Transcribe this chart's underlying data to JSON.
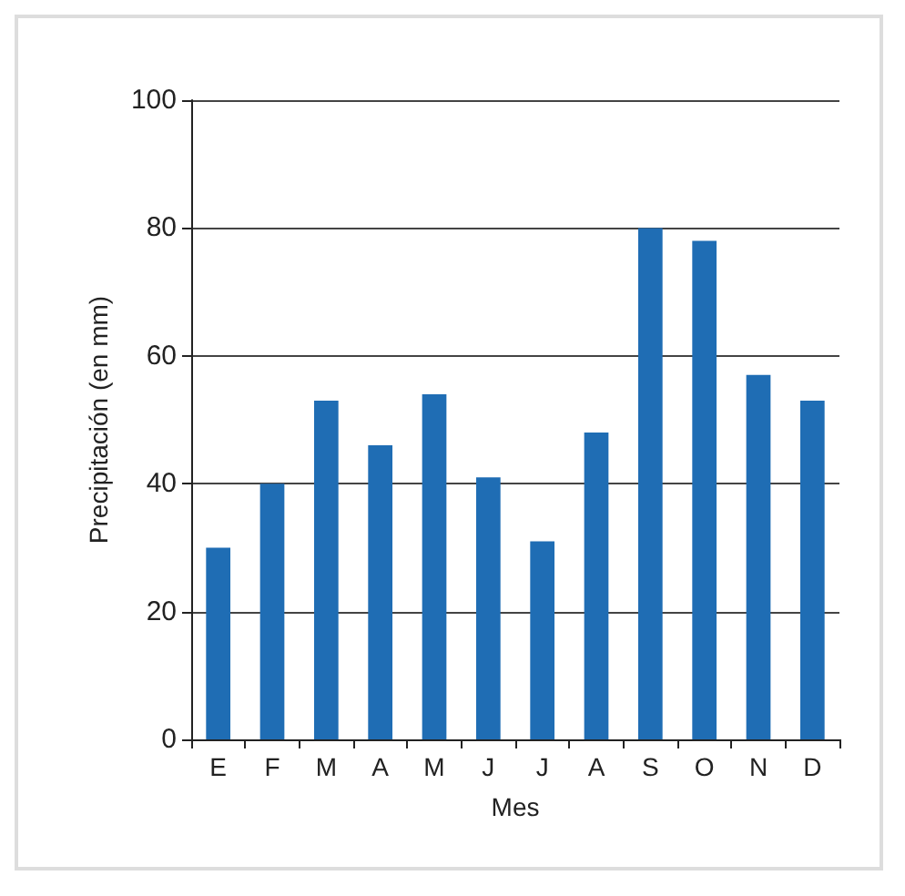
{
  "chart_data": {
    "type": "bar",
    "xlabel": "Mes",
    "ylabel": "Precipitación (en mm)",
    "categories": [
      "E",
      "F",
      "M",
      "A",
      "M",
      "J",
      "J",
      "A",
      "S",
      "O",
      "N",
      "D"
    ],
    "values": [
      30,
      40,
      53,
      46,
      54,
      41,
      31,
      48,
      80,
      78,
      57,
      53
    ],
    "color": "#1f6db4",
    "ylim": [
      0,
      100
    ],
    "yticks": [
      0,
      20,
      40,
      60,
      80,
      100
    ],
    "grid": "y"
  }
}
